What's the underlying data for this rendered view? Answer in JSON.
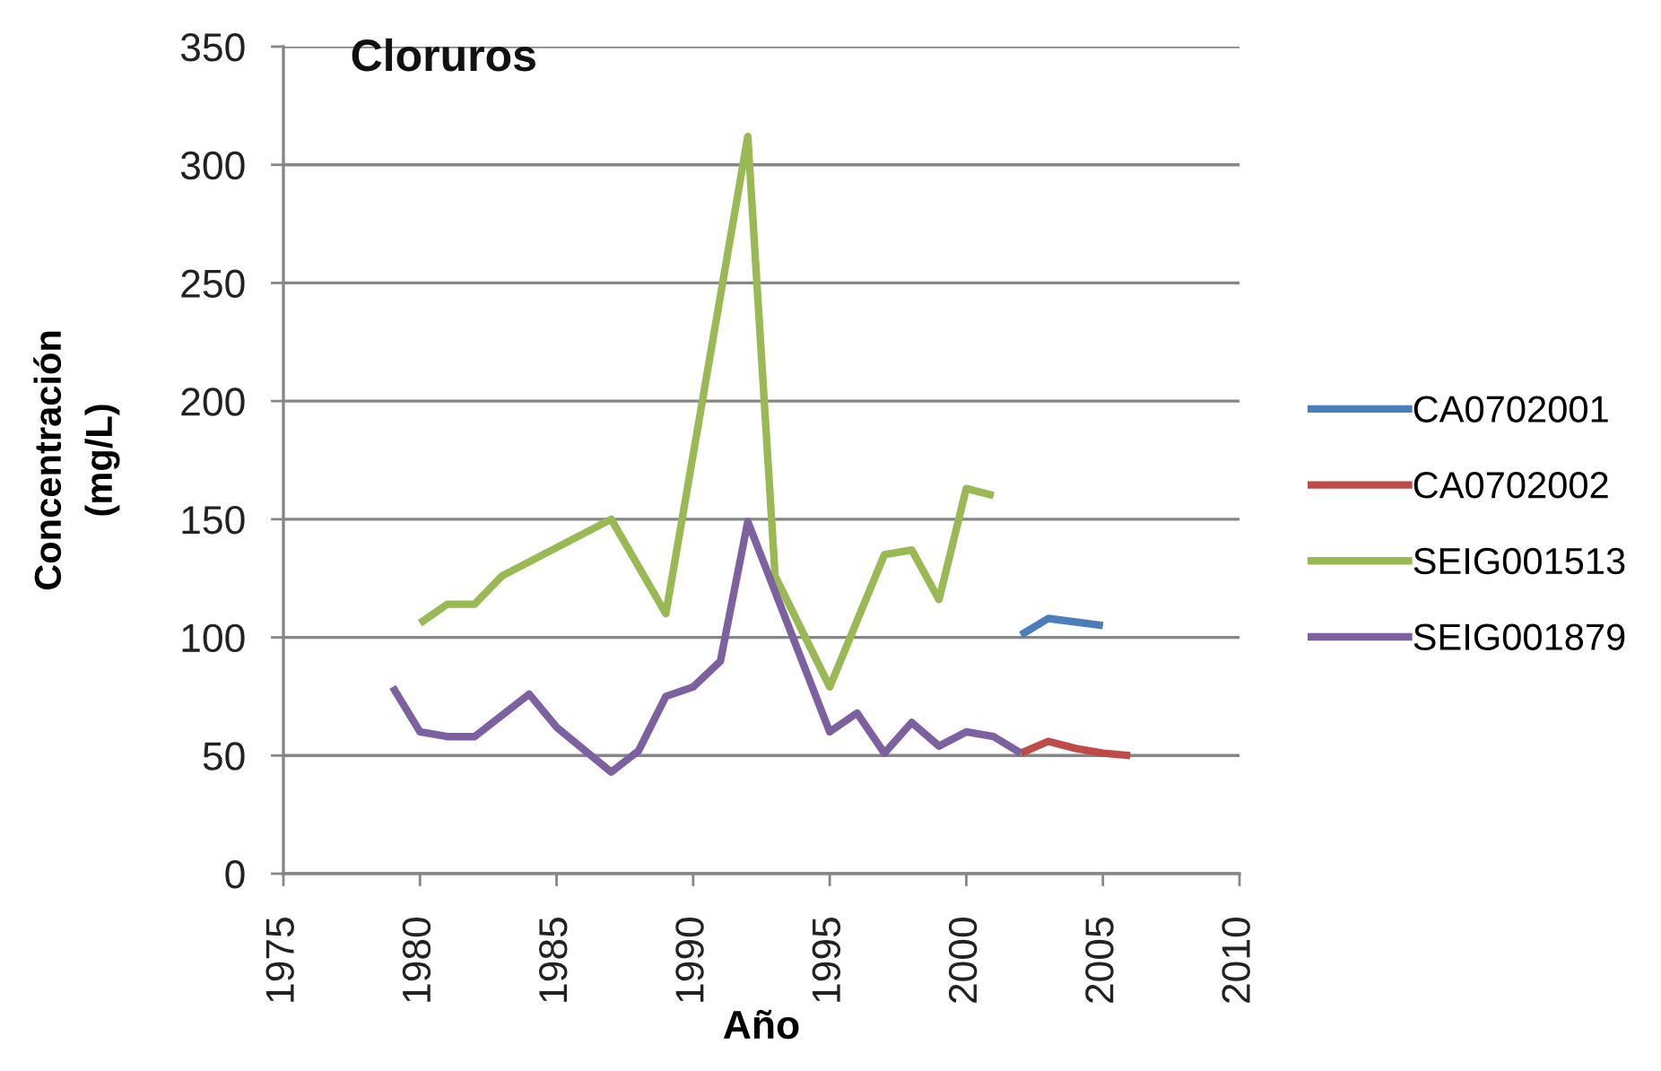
{
  "chart_data": {
    "type": "line",
    "title": "Cloruros",
    "xlabel": "Año",
    "ylabel": "Concentración\n(mg/L)",
    "xlim": [
      1975,
      2010
    ],
    "xticks": [
      1975,
      1980,
      1985,
      1990,
      1995,
      2000,
      2005,
      2010
    ],
    "ylim": [
      0,
      350
    ],
    "yticks": [
      0,
      50,
      100,
      150,
      200,
      250,
      300,
      350
    ],
    "grid": "y",
    "legend": "right",
    "marker": "none",
    "line_style": "solid",
    "series": [
      {
        "name": "CA0702001",
        "color": "#4a7ebb",
        "x": [
          2002,
          2003,
          2005
        ],
        "values": [
          101,
          108,
          105
        ]
      },
      {
        "name": "CA0702002",
        "color": "#be4b48",
        "x": [
          2002,
          2003,
          2004,
          2005,
          2006
        ],
        "values": [
          51,
          56,
          53,
          51,
          50
        ]
      },
      {
        "name": "SEIG001513",
        "color": "#98b954",
        "x": [
          1980,
          1981,
          1982,
          1983,
          1987,
          1989,
          1992,
          1993,
          1995,
          1997,
          1998,
          1999,
          2000,
          2001
        ],
        "values": [
          106,
          114,
          114,
          126,
          150,
          110,
          312,
          126,
          79,
          135,
          137,
          116,
          163,
          160
        ]
      },
      {
        "name": "SEIG001879",
        "color": "#7d60a0",
        "x": [
          1979,
          1980,
          1981,
          1982,
          1983,
          1984,
          1985,
          1987,
          1988,
          1989,
          1990,
          1991,
          1992,
          1995,
          1996,
          1997,
          1998,
          1999,
          2000,
          2001,
          2002
        ],
        "values": [
          79,
          60,
          58,
          58,
          67,
          76,
          62,
          43,
          52,
          75,
          79,
          90,
          149,
          60,
          68,
          51,
          64,
          54,
          60,
          58,
          51
        ]
      }
    ]
  }
}
